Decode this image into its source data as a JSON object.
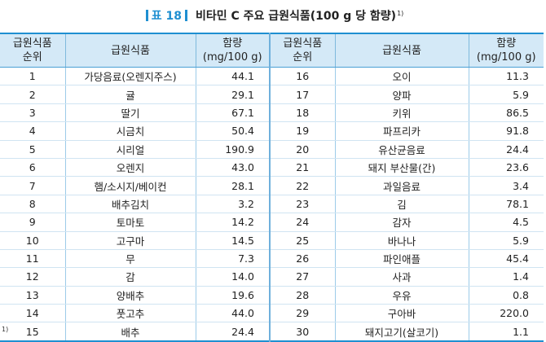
{
  "title": {
    "tag": "표 18",
    "text": "비타민 C 주요 급원식품(100 g 당 함량)",
    "sup": "1)"
  },
  "headers": {
    "rank": [
      "급원식품",
      "순위"
    ],
    "food": "급원식품",
    "amount": [
      "함량",
      "(mg/100 g)"
    ]
  },
  "rows": [
    {
      "rank": "1",
      "food": "가당음료(오렌지주스)",
      "amount": "44.1",
      "rank2": "16",
      "food2": "오이",
      "amount2": "11.3"
    },
    {
      "rank": "2",
      "food": "귤",
      "amount": "29.1",
      "rank2": "17",
      "food2": "양파",
      "amount2": "5.9"
    },
    {
      "rank": "3",
      "food": "딸기",
      "amount": "67.1",
      "rank2": "18",
      "food2": "키위",
      "amount2": "86.5"
    },
    {
      "rank": "4",
      "food": "시금치",
      "amount": "50.4",
      "rank2": "19",
      "food2": "파프리카",
      "amount2": "91.8"
    },
    {
      "rank": "5",
      "food": "시리얼",
      "amount": "190.9",
      "rank2": "20",
      "food2": "유산균음료",
      "amount2": "24.4"
    },
    {
      "rank": "6",
      "food": "오렌지",
      "amount": "43.0",
      "rank2": "21",
      "food2": "돼지 부산물(간)",
      "amount2": "23.6"
    },
    {
      "rank": "7",
      "food": "햄/소시지/베이컨",
      "amount": "28.1",
      "rank2": "22",
      "food2": "과일음료",
      "amount2": "3.4"
    },
    {
      "rank": "8",
      "food": "배추김치",
      "amount": "3.2",
      "rank2": "23",
      "food2": "김",
      "amount2": "78.1"
    },
    {
      "rank": "9",
      "food": "토마토",
      "amount": "14.2",
      "rank2": "24",
      "food2": "감자",
      "amount2": "4.5"
    },
    {
      "rank": "10",
      "food": "고구마",
      "amount": "14.5",
      "rank2": "25",
      "food2": "바나나",
      "amount2": "5.9"
    },
    {
      "rank": "11",
      "food": "무",
      "amount": "7.3",
      "rank2": "26",
      "food2": "파인애플",
      "amount2": "45.4"
    },
    {
      "rank": "12",
      "food": "감",
      "amount": "14.0",
      "rank2": "27",
      "food2": "사과",
      "amount2": "1.4"
    },
    {
      "rank": "13",
      "food": "양배추",
      "amount": "19.6",
      "rank2": "28",
      "food2": "우유",
      "amount2": "0.8"
    },
    {
      "rank": "14",
      "food": "풋고추",
      "amount": "44.0",
      "rank2": "29",
      "food2": "구아바",
      "amount2": "220.0"
    },
    {
      "rank": "15",
      "food": "배추",
      "amount": "24.4",
      "rank2": "30",
      "food2": "돼지고기(살코기)",
      "amount2": "1.1"
    }
  ],
  "footnote": "1)"
}
